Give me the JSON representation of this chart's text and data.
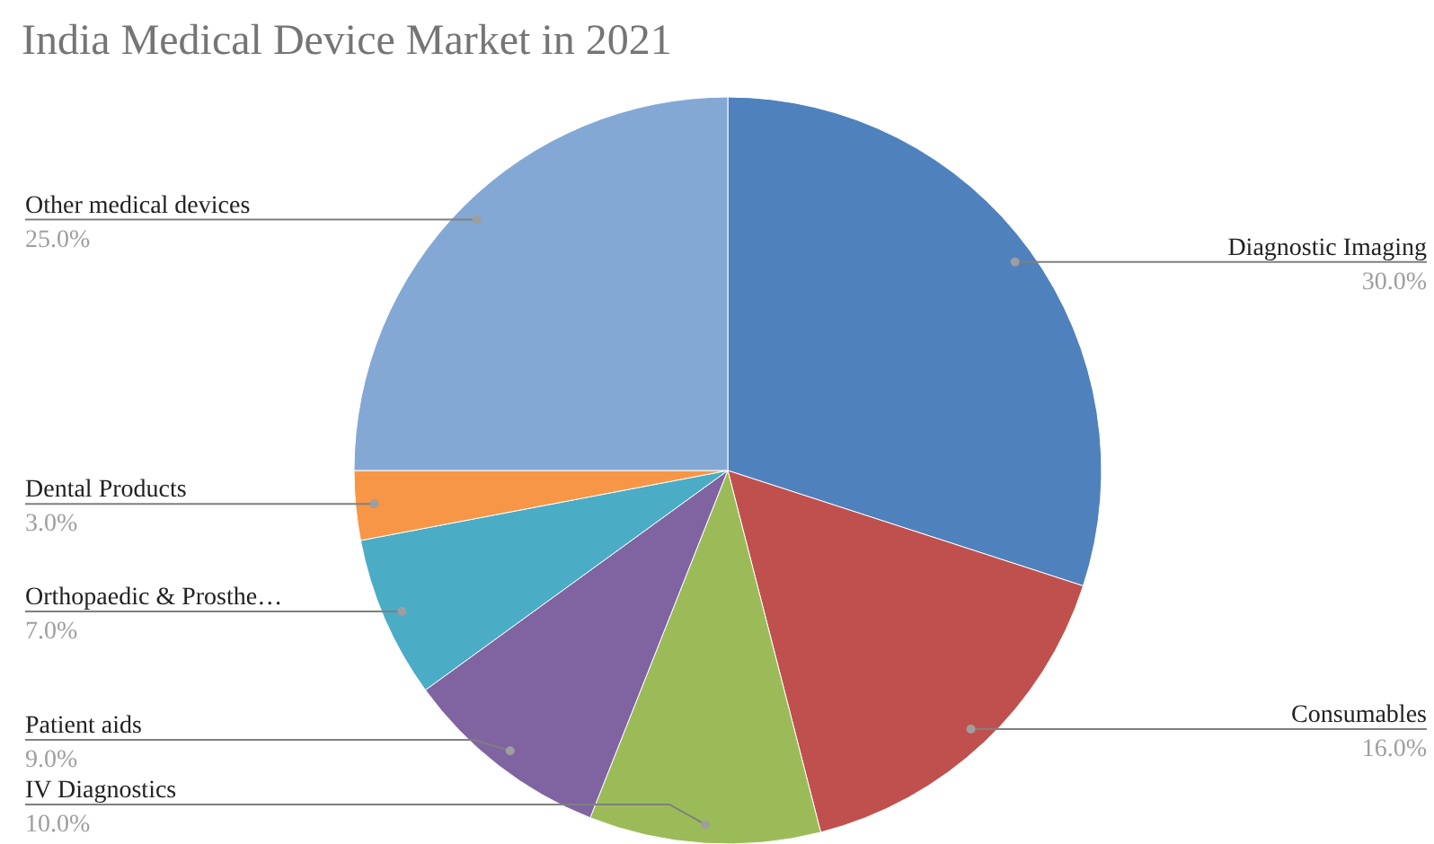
{
  "chart_data": {
    "type": "pie",
    "title": "India Medical Device Market in 2021",
    "categories": [
      "Diagnostic Imaging",
      "Consumables",
      "IV Diagnostics",
      "Patient aids",
      "Orthopaedic & Prosthe…",
      "Dental Products",
      "Other medical devices"
    ],
    "values": [
      30,
      16,
      10,
      9,
      7,
      3,
      25
    ],
    "value_labels": [
      "30.0%",
      "16.0%",
      "10.0%",
      "9.0%",
      "7.0%",
      "3.0%",
      "25.0%"
    ],
    "colors": [
      "#4f81bd",
      "#c0504d",
      "#9bbb59",
      "#8064a2",
      "#4bacc6",
      "#f79646",
      "#84a8d4"
    ]
  }
}
